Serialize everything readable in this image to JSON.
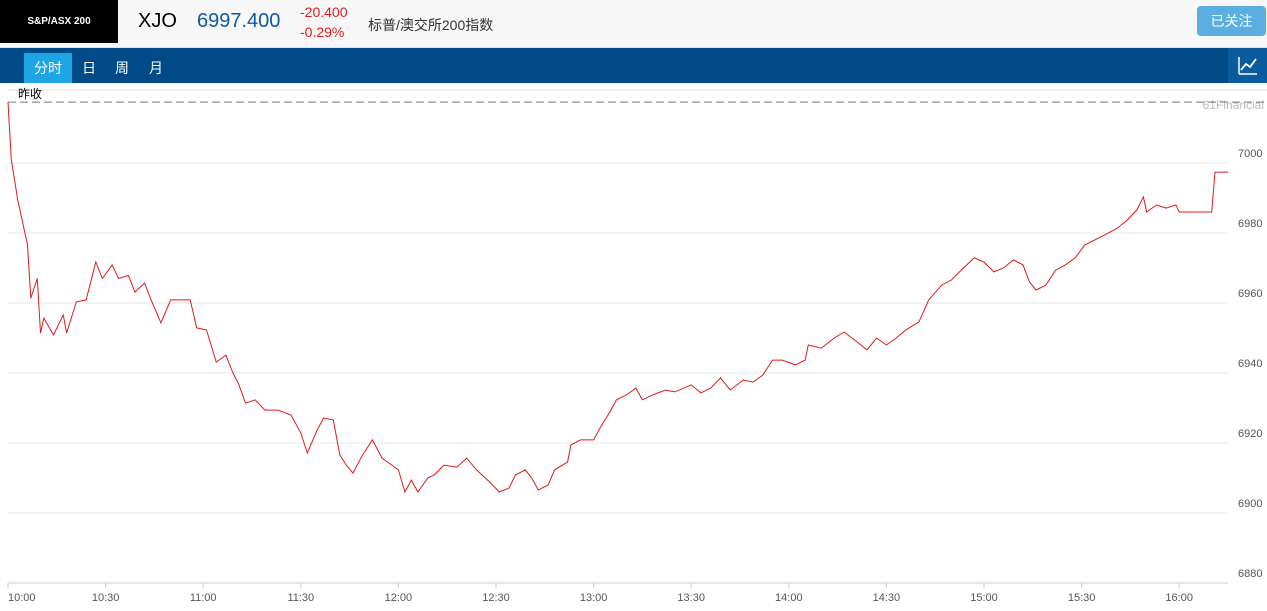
{
  "header": {
    "logo": "S&P/ASX 200",
    "symbol": "XJO",
    "price": "6997.400",
    "change": "-20.400",
    "change_pct": "-0.29%",
    "name": "标普/澳交所200指数",
    "follow_button": "已关注"
  },
  "tabs": [
    "分时",
    "日",
    "周",
    "月"
  ],
  "chart_data": {
    "type": "line",
    "watermark": "61Financial",
    "prev_close": 7017.4,
    "prev_close_label": "昨收",
    "x": [
      "10:00",
      "10:01",
      "10:03",
      "10:06",
      "10:07",
      "10:09",
      "10:10",
      "10:11",
      "10:14",
      "10:17",
      "10:18",
      "10:21",
      "10:24",
      "10:27",
      "10:29",
      "10:32",
      "10:34",
      "10:37",
      "10:39",
      "10:42",
      "10:44",
      "10:47",
      "10:50",
      "10:56",
      "10:58",
      "11:01",
      "11:04",
      "11:07",
      "11:09",
      "11:11",
      "11:13",
      "11:16",
      "11:19",
      "11:23",
      "11:27",
      "11:30",
      "11:32",
      "11:35",
      "11:37",
      "11:40",
      "11:42",
      "11:44",
      "11:46",
      "11:49",
      "11:52",
      "11:55",
      "11:58",
      "12:00",
      "12:02",
      "12:04",
      "12:06",
      "12:09",
      "12:11",
      "12:14",
      "12:18",
      "12:21",
      "12:24",
      "12:28",
      "12:31",
      "12:34",
      "12:36",
      "12:39",
      "12:41",
      "12:43",
      "12:46",
      "12:48",
      "12:52",
      "12:53",
      "12:56",
      "13:00",
      "13:02",
      "13:05",
      "13:07",
      "13:10",
      "13:13",
      "13:15",
      "13:18",
      "13:22",
      "13:25",
      "13:30",
      "13:33",
      "13:36",
      "13:39",
      "13:42",
      "13:46",
      "13:49",
      "13:52",
      "13:55",
      "13:58",
      "14:02",
      "14:05",
      "14:06",
      "14:10",
      "14:14",
      "14:17",
      "14:21",
      "14:24",
      "14:27",
      "14:30",
      "14:33",
      "14:36",
      "14:40",
      "14:43",
      "14:47",
      "14:50",
      "14:53",
      "14:57",
      "15:00",
      "15:03",
      "15:06",
      "15:09",
      "15:12",
      "15:14",
      "15:16",
      "15:19",
      "15:22",
      "15:25",
      "15:28",
      "15:31",
      "15:34",
      "15:37",
      "15:41",
      "15:44",
      "15:47",
      "15:49",
      "15:50",
      "15:53",
      "15:56",
      "15:59",
      "16:00",
      "16:10",
      "16:11",
      "16:15"
    ],
    "series": [
      {
        "name": "XJO",
        "color": "#e0191b",
        "values": [
          7017.4,
          7000.9,
          6989.4,
          6976.6,
          6961.4,
          6967,
          6951.4,
          6955.7,
          6950.9,
          6956.6,
          6951.4,
          6960.3,
          6960.9,
          6971.7,
          6967,
          6970.9,
          6967,
          6967.9,
          6963.1,
          6965.7,
          6960.9,
          6954.3,
          6960.9,
          6960.9,
          6952.9,
          6952.3,
          6943.1,
          6945.1,
          6940.3,
          6936.6,
          6931.4,
          6932.3,
          6929.4,
          6929.4,
          6928,
          6922.9,
          6917.1,
          6923.7,
          6927.1,
          6926.6,
          6916.6,
          6913.7,
          6911.4,
          6916.6,
          6920.9,
          6915.7,
          6913.7,
          6912.3,
          6906,
          6909.4,
          6906,
          6910,
          6910.9,
          6913.7,
          6913.1,
          6915.7,
          6912.3,
          6908.9,
          6906,
          6907.1,
          6910.9,
          6912.3,
          6910,
          6906.6,
          6908,
          6912.3,
          6914.6,
          6919.4,
          6920.9,
          6920.9,
          6924.3,
          6928.9,
          6932.3,
          6933.7,
          6935.7,
          6932.3,
          6933.7,
          6935.1,
          6934.6,
          6936.6,
          6934.3,
          6935.7,
          6938.6,
          6935.1,
          6938,
          6937.4,
          6939.4,
          6943.7,
          6943.7,
          6942.3,
          6943.7,
          6948,
          6947.1,
          6950,
          6951.7,
          6948.9,
          6946.6,
          6950,
          6948,
          6950,
          6952.3,
          6954.6,
          6960.9,
          6965.1,
          6966.6,
          6969.4,
          6972.9,
          6971.7,
          6968.9,
          6970,
          6972.3,
          6970.9,
          6966,
          6963.7,
          6965.1,
          6969.4,
          6970.9,
          6972.9,
          6976.6,
          6978,
          6979.4,
          6981.4,
          6983.7,
          6986.6,
          6990.3,
          6986,
          6988,
          6987.1,
          6988,
          6986,
          6986,
          6997.4,
          6997.4
        ]
      }
    ],
    "xlim": [
      "10:00",
      "16:15"
    ],
    "xticks": [
      "10:00",
      "10:30",
      "11:00",
      "11:30",
      "12:00",
      "12:30",
      "13:00",
      "13:30",
      "14:00",
      "14:30",
      "15:00",
      "15:30",
      "16:00"
    ],
    "ylim": [
      6880,
      7020
    ],
    "yticks": [
      6880,
      6900,
      6920,
      6940,
      6960,
      6980,
      7000
    ],
    "grid": true
  }
}
